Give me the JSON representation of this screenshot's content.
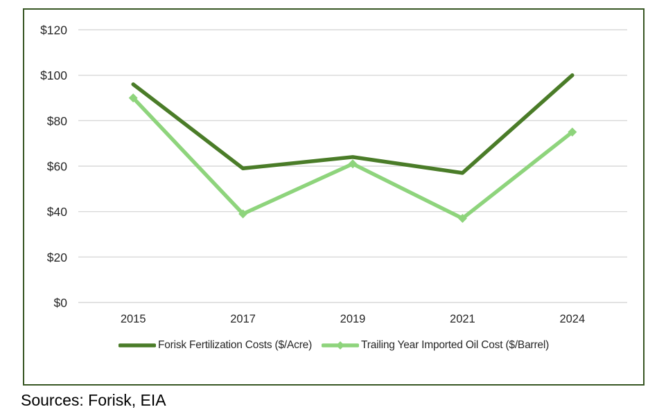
{
  "figure": {
    "border_color": "#375623",
    "background": "#ffffff"
  },
  "chart_data": {
    "type": "line",
    "categories": [
      "2015",
      "2017",
      "2019",
      "2021",
      "2024"
    ],
    "series": [
      {
        "name": "Forisk Fertilization Costs ($/Acre)",
        "values": [
          96,
          59,
          64,
          57,
          100
        ],
        "color": "#4a7c28",
        "marker": "none"
      },
      {
        "name": "Trailing Year Imported Oil Cost ($/Barrel)",
        "values": [
          90,
          39,
          61,
          37,
          75
        ],
        "color": "#8ed47c",
        "marker": "diamond"
      }
    ],
    "title": "",
    "xlabel": "",
    "ylabel": "",
    "ylim": [
      0,
      120
    ],
    "ytick_step": 20,
    "ytick_labels": [
      "$0",
      "$20",
      "$40",
      "$60",
      "$80",
      "$100",
      "$120"
    ],
    "grid": true,
    "gridline_color": "#d9d9d9",
    "tick_label_color": "#262626",
    "legend_position": "bottom"
  },
  "caption": {
    "text": "Sources: Forisk, EIA"
  }
}
